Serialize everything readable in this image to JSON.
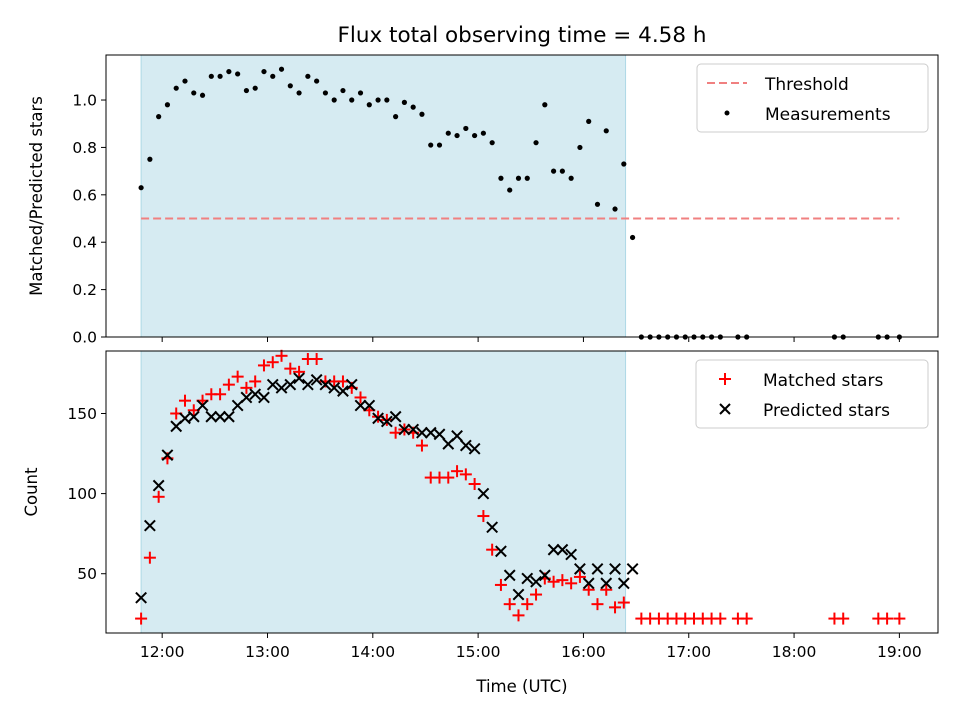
{
  "title": "Flux total observing time = 4.58 h",
  "colors": {
    "shade": "#add8e6",
    "threshold": "#f08080",
    "matched": "#ff0000",
    "predicted": "#000000",
    "measurement": "#000000"
  },
  "chart_data": [
    {
      "type": "scatter",
      "ylabel": "Matched/Predicted stars",
      "xlabel": "",
      "ylim": [
        0,
        1.19
      ],
      "xlim": [
        "11:28",
        "19:22"
      ],
      "yticks": [
        "0.0",
        "0.2",
        "0.4",
        "0.6",
        "0.8",
        "1.0"
      ],
      "shaded_interval": [
        "11:48",
        "16:24"
      ],
      "legend_position": "upper right",
      "threshold": {
        "name": "Threshold",
        "value": 0.5,
        "x_range": [
          "11:48",
          "19:00"
        ],
        "style": "dashed"
      },
      "series": [
        {
          "name": "Measurements",
          "points": [
            [
              "11:48",
              0.63
            ],
            [
              "11:53",
              0.75
            ],
            [
              "11:58",
              0.93
            ],
            [
              "12:03",
              0.98
            ],
            [
              "12:08",
              1.05
            ],
            [
              "12:13",
              1.08
            ],
            [
              "12:18",
              1.03
            ],
            [
              "12:23",
              1.02
            ],
            [
              "12:28",
              1.1
            ],
            [
              "12:33",
              1.1
            ],
            [
              "12:38",
              1.12
            ],
            [
              "12:43",
              1.11
            ],
            [
              "12:48",
              1.04
            ],
            [
              "12:53",
              1.05
            ],
            [
              "12:58",
              1.12
            ],
            [
              "13:03",
              1.1
            ],
            [
              "13:08",
              1.13
            ],
            [
              "13:13",
              1.06
            ],
            [
              "13:18",
              1.03
            ],
            [
              "13:23",
              1.1
            ],
            [
              "13:28",
              1.08
            ],
            [
              "13:33",
              1.03
            ],
            [
              "13:38",
              1.0
            ],
            [
              "13:43",
              1.04
            ],
            [
              "13:48",
              1.0
            ],
            [
              "13:53",
              1.03
            ],
            [
              "13:58",
              0.98
            ],
            [
              "14:03",
              1.0
            ],
            [
              "14:08",
              1.0
            ],
            [
              "14:13",
              0.93
            ],
            [
              "14:18",
              0.99
            ],
            [
              "14:23",
              0.97
            ],
            [
              "14:28",
              0.94
            ],
            [
              "14:33",
              0.81
            ],
            [
              "14:38",
              0.81
            ],
            [
              "14:43",
              0.86
            ],
            [
              "14:48",
              0.85
            ],
            [
              "14:53",
              0.88
            ],
            [
              "14:58",
              0.85
            ],
            [
              "15:03",
              0.86
            ],
            [
              "15:08",
              0.82
            ],
            [
              "15:13",
              0.67
            ],
            [
              "15:18",
              0.62
            ],
            [
              "15:23",
              0.67
            ],
            [
              "15:28",
              0.67
            ],
            [
              "15:33",
              0.82
            ],
            [
              "15:38",
              0.98
            ],
            [
              "15:43",
              0.7
            ],
            [
              "15:48",
              0.7
            ],
            [
              "15:53",
              0.67
            ],
            [
              "15:58",
              0.8
            ],
            [
              "16:03",
              0.91
            ],
            [
              "16:08",
              0.56
            ],
            [
              "16:13",
              0.87
            ],
            [
              "16:18",
              0.54
            ],
            [
              "16:23",
              0.73
            ],
            [
              "16:28",
              0.42
            ],
            [
              "16:33",
              0
            ],
            [
              "16:38",
              0
            ],
            [
              "16:43",
              0
            ],
            [
              "16:48",
              0
            ],
            [
              "16:53",
              0
            ],
            [
              "16:58",
              0
            ],
            [
              "17:03",
              0
            ],
            [
              "17:08",
              0
            ],
            [
              "17:13",
              0
            ],
            [
              "17:18",
              0
            ],
            [
              "17:28",
              0
            ],
            [
              "17:33",
              0
            ],
            [
              "18:23",
              0
            ],
            [
              "18:28",
              0
            ],
            [
              "18:48",
              0
            ],
            [
              "18:53",
              0
            ],
            [
              "19:00",
              0
            ]
          ]
        }
      ]
    },
    {
      "type": "scatter",
      "ylabel": "Count",
      "xlabel": "Time (UTC)",
      "ylim": [
        13,
        189
      ],
      "xlim": [
        "11:28",
        "19:22"
      ],
      "xticks": [
        "12:00",
        "13:00",
        "14:00",
        "15:00",
        "16:00",
        "17:00",
        "18:00",
        "19:00"
      ],
      "yticks": [
        "50",
        "100",
        "150"
      ],
      "shaded_interval": [
        "11:48",
        "16:24"
      ],
      "legend_position": "upper right",
      "series": [
        {
          "name": "Matched stars",
          "marker": "plus",
          "points": [
            [
              "11:48",
              22
            ],
            [
              "11:53",
              60
            ],
            [
              "11:58",
              98
            ],
            [
              "12:03",
              122
            ],
            [
              "12:08",
              150
            ],
            [
              "12:13",
              158
            ],
            [
              "12:18",
              152
            ],
            [
              "12:23",
              158
            ],
            [
              "12:28",
              162
            ],
            [
              "12:33",
              162
            ],
            [
              "12:38",
              168
            ],
            [
              "12:43",
              173
            ],
            [
              "12:48",
              166
            ],
            [
              "12:53",
              170
            ],
            [
              "12:58",
              180
            ],
            [
              "13:03",
              182
            ],
            [
              "13:08",
              186
            ],
            [
              "13:13",
              178
            ],
            [
              "13:18",
              176
            ],
            [
              "13:23",
              184
            ],
            [
              "13:28",
              184
            ],
            [
              "13:33",
              170
            ],
            [
              "13:38",
              170
            ],
            [
              "13:43",
              170
            ],
            [
              "13:48",
              166
            ],
            [
              "13:53",
              160
            ],
            [
              "13:58",
              152
            ],
            [
              "14:03",
              148
            ],
            [
              "14:08",
              146
            ],
            [
              "14:13",
              138
            ],
            [
              "14:18",
              140
            ],
            [
              "14:23",
              138
            ],
            [
              "14:28",
              130
            ],
            [
              "14:33",
              110
            ],
            [
              "14:38",
              110
            ],
            [
              "14:43",
              110
            ],
            [
              "14:48",
              114
            ],
            [
              "14:53",
              112
            ],
            [
              "14:58",
              106
            ],
            [
              "15:03",
              86
            ],
            [
              "15:08",
              65
            ],
            [
              "15:13",
              43
            ],
            [
              "15:18",
              31
            ],
            [
              "15:23",
              24
            ],
            [
              "15:28",
              31
            ],
            [
              "15:33",
              37
            ],
            [
              "15:38",
              47
            ],
            [
              "15:43",
              45
            ],
            [
              "15:48",
              46
            ],
            [
              "15:53",
              44
            ],
            [
              "15:58",
              48
            ],
            [
              "16:03",
              40
            ],
            [
              "16:08",
              31
            ],
            [
              "16:13",
              40
            ],
            [
              "16:18",
              29
            ],
            [
              "16:23",
              32
            ],
            [
              "16:33",
              22
            ],
            [
              "16:38",
              22
            ],
            [
              "16:43",
              22
            ],
            [
              "16:48",
              22
            ],
            [
              "16:53",
              22
            ],
            [
              "16:58",
              22
            ],
            [
              "17:03",
              22
            ],
            [
              "17:08",
              22
            ],
            [
              "17:13",
              22
            ],
            [
              "17:18",
              22
            ],
            [
              "17:28",
              22
            ],
            [
              "17:33",
              22
            ],
            [
              "18:23",
              22
            ],
            [
              "18:28",
              22
            ],
            [
              "18:48",
              22
            ],
            [
              "18:53",
              22
            ],
            [
              "19:00",
              22
            ]
          ]
        },
        {
          "name": "Predicted stars",
          "marker": "x",
          "points": [
            [
              "11:48",
              35
            ],
            [
              "11:53",
              80
            ],
            [
              "11:58",
              105
            ],
            [
              "12:03",
              124
            ],
            [
              "12:08",
              142
            ],
            [
              "12:13",
              147
            ],
            [
              "12:18",
              148
            ],
            [
              "12:23",
              155
            ],
            [
              "12:28",
              148
            ],
            [
              "12:33",
              148
            ],
            [
              "12:38",
              148
            ],
            [
              "12:43",
              155
            ],
            [
              "12:48",
              160
            ],
            [
              "12:53",
              162
            ],
            [
              "12:58",
              160
            ],
            [
              "13:03",
              168
            ],
            [
              "13:08",
              166
            ],
            [
              "13:13",
              168
            ],
            [
              "13:18",
              172
            ],
            [
              "13:23",
              168
            ],
            [
              "13:28",
              171
            ],
            [
              "13:33",
              168
            ],
            [
              "13:38",
              166
            ],
            [
              "13:43",
              164
            ],
            [
              "13:48",
              168
            ],
            [
              "13:53",
              155
            ],
            [
              "13:58",
              155
            ],
            [
              "14:03",
              147
            ],
            [
              "14:08",
              145
            ],
            [
              "14:13",
              148
            ],
            [
              "14:18",
              140
            ],
            [
              "14:23",
              140
            ],
            [
              "14:28",
              138
            ],
            [
              "14:33",
              138
            ],
            [
              "14:38",
              137
            ],
            [
              "14:43",
              131
            ],
            [
              "14:48",
              136
            ],
            [
              "14:53",
              130
            ],
            [
              "14:58",
              128
            ],
            [
              "15:03",
              100
            ],
            [
              "15:08",
              79
            ],
            [
              "15:13",
              64
            ],
            [
              "15:18",
              49
            ],
            [
              "15:23",
              37
            ],
            [
              "15:28",
              47
            ],
            [
              "15:33",
              45
            ],
            [
              "15:38",
              49
            ],
            [
              "15:43",
              65
            ],
            [
              "15:48",
              65
            ],
            [
              "15:53",
              62
            ],
            [
              "15:58",
              53
            ],
            [
              "16:03",
              44
            ],
            [
              "16:08",
              53
            ],
            [
              "16:13",
              44
            ],
            [
              "16:18",
              53
            ],
            [
              "16:23",
              44
            ],
            [
              "16:28",
              53
            ]
          ]
        }
      ]
    }
  ]
}
